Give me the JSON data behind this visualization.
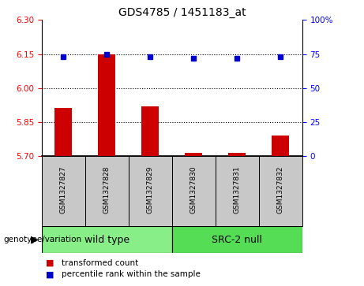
{
  "title": "GDS4785 / 1451183_at",
  "samples": [
    "GSM1327827",
    "GSM1327828",
    "GSM1327829",
    "GSM1327830",
    "GSM1327831",
    "GSM1327832"
  ],
  "red_values": [
    5.91,
    6.15,
    5.92,
    5.715,
    5.715,
    5.79
  ],
  "blue_values": [
    73,
    75,
    73,
    72,
    72,
    73
  ],
  "ylim_left": [
    5.7,
    6.3
  ],
  "ylim_right": [
    0,
    100
  ],
  "yticks_left": [
    5.7,
    5.85,
    6.0,
    6.15,
    6.3
  ],
  "yticks_right": [
    0,
    25,
    50,
    75,
    100
  ],
  "ytick_labels_right": [
    "0",
    "25",
    "50",
    "75",
    "100%"
  ],
  "hlines": [
    5.85,
    6.0,
    6.15
  ],
  "wild_type_indices": [
    0,
    1,
    2
  ],
  "src2_null_indices": [
    3,
    4,
    5
  ],
  "bar_color": "#cc0000",
  "dot_color": "#0000cc",
  "wild_type_color": "#88ee88",
  "src2_null_color": "#55dd55",
  "label_bg_color": "#c8c8c8",
  "bar_bottom": 5.7,
  "bar_width": 0.4,
  "legend_red_label": "transformed count",
  "legend_blue_label": "percentile rank within the sample",
  "genotype_label": "genotype/variation",
  "wild_type_label": "wild type",
  "src2_null_label": "SRC-2 null"
}
